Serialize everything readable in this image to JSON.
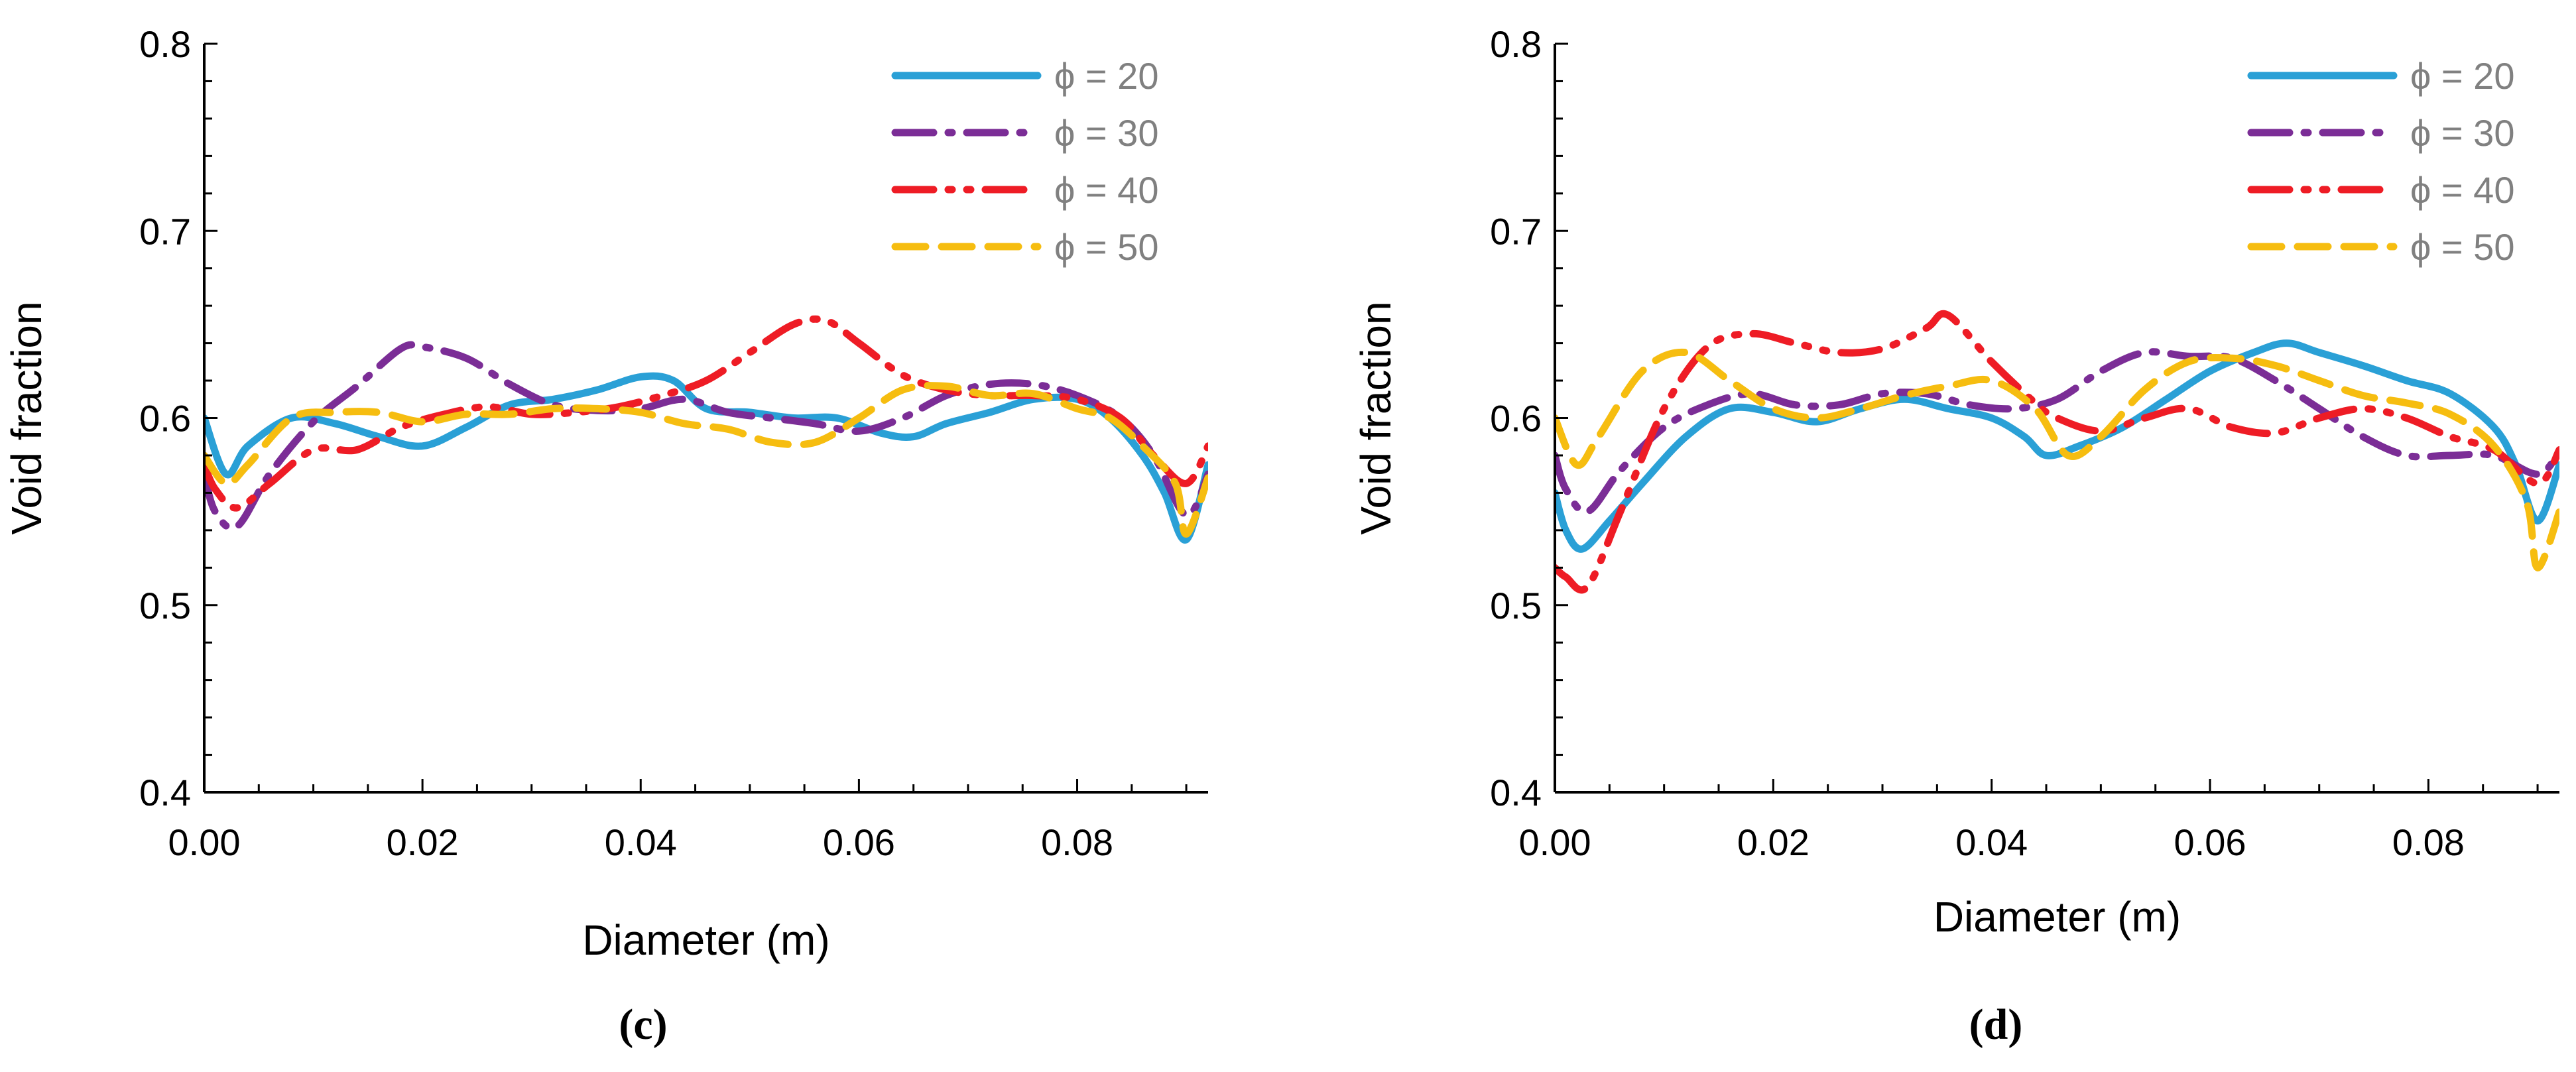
{
  "chart_data": [
    {
      "type": "line",
      "panel_label": "(c)",
      "xlabel": "Diameter (m)",
      "ylabel": "Void fraction",
      "xlim": [
        0,
        0.092
      ],
      "ylim": [
        0.4,
        0.8
      ],
      "xticks": [
        "0.00",
        "0.02",
        "0.04",
        "0.06",
        "0.08"
      ],
      "yticks": [
        "0.4",
        "0.5",
        "0.6",
        "0.7",
        "0.8"
      ],
      "grid": false,
      "legend": "top-right",
      "series": [
        {
          "name": "ϕ = 20",
          "color": "#2aa0d6",
          "dash": "solid",
          "x": [
            0,
            0.002,
            0.004,
            0.008,
            0.012,
            0.016,
            0.02,
            0.024,
            0.028,
            0.032,
            0.036,
            0.04,
            0.043,
            0.046,
            0.05,
            0.054,
            0.058,
            0.062,
            0.065,
            0.068,
            0.072,
            0.076,
            0.08,
            0.083,
            0.086,
            0.088,
            0.09,
            0.092
          ],
          "y": [
            0.6,
            0.57,
            0.585,
            0.6,
            0.597,
            0.59,
            0.585,
            0.595,
            0.607,
            0.61,
            0.615,
            0.622,
            0.62,
            0.605,
            0.603,
            0.6,
            0.6,
            0.592,
            0.59,
            0.597,
            0.603,
            0.61,
            0.61,
            0.6,
            0.58,
            0.56,
            0.535,
            0.575
          ]
        },
        {
          "name": "ϕ = 30",
          "color": "#7b2d96",
          "dash": "dashdot",
          "x": [
            0,
            0.001,
            0.003,
            0.006,
            0.01,
            0.014,
            0.018,
            0.02,
            0.024,
            0.028,
            0.032,
            0.036,
            0.04,
            0.044,
            0.048,
            0.052,
            0.056,
            0.06,
            0.064,
            0.068,
            0.072,
            0.076,
            0.08,
            0.084,
            0.087,
            0.09,
            0.092
          ],
          "y": [
            0.57,
            0.55,
            0.542,
            0.57,
            0.598,
            0.617,
            0.637,
            0.638,
            0.632,
            0.618,
            0.607,
            0.604,
            0.605,
            0.61,
            0.603,
            0.6,
            0.597,
            0.593,
            0.6,
            0.612,
            0.618,
            0.618,
            0.612,
            0.6,
            0.58,
            0.548,
            0.57
          ]
        },
        {
          "name": "ϕ = 40",
          "color": "#ee1c25",
          "dash": "dashdotdot",
          "x": [
            0,
            0.001,
            0.003,
            0.006,
            0.01,
            0.014,
            0.018,
            0.022,
            0.026,
            0.03,
            0.034,
            0.038,
            0.042,
            0.046,
            0.05,
            0.054,
            0.057,
            0.06,
            0.064,
            0.068,
            0.072,
            0.076,
            0.08,
            0.084,
            0.087,
            0.09,
            0.092
          ],
          "y": [
            0.575,
            0.562,
            0.552,
            0.565,
            0.583,
            0.583,
            0.595,
            0.602,
            0.606,
            0.602,
            0.603,
            0.606,
            0.612,
            0.62,
            0.635,
            0.65,
            0.652,
            0.64,
            0.623,
            0.615,
            0.612,
            0.612,
            0.61,
            0.6,
            0.58,
            0.565,
            0.585
          ]
        },
        {
          "name": "ϕ = 50",
          "color": "#f6bd10",
          "dash": "dashed",
          "x": [
            0,
            0.002,
            0.004,
            0.008,
            0.012,
            0.016,
            0.02,
            0.024,
            0.028,
            0.032,
            0.036,
            0.04,
            0.044,
            0.048,
            0.052,
            0.056,
            0.06,
            0.064,
            0.068,
            0.072,
            0.076,
            0.08,
            0.083,
            0.086,
            0.089,
            0.09,
            0.092
          ],
          "y": [
            0.58,
            0.565,
            0.575,
            0.6,
            0.603,
            0.603,
            0.598,
            0.602,
            0.602,
            0.605,
            0.605,
            0.603,
            0.597,
            0.594,
            0.587,
            0.587,
            0.6,
            0.615,
            0.617,
            0.612,
            0.613,
            0.605,
            0.6,
            0.585,
            0.565,
            0.538,
            0.568
          ]
        }
      ]
    },
    {
      "type": "line",
      "panel_label": "(d)",
      "xlabel": "Diameter (m)",
      "ylabel": "Void fraction",
      "xlim": [
        0,
        0.092
      ],
      "ylim": [
        0.4,
        0.8
      ],
      "xticks": [
        "0.00",
        "0.02",
        "0.04",
        "0.06",
        "0.08"
      ],
      "yticks": [
        "0.4",
        "0.5",
        "0.6",
        "0.7",
        "0.8"
      ],
      "grid": false,
      "legend": "top-right",
      "series": [
        {
          "name": "ϕ = 20",
          "color": "#2aa0d6",
          "dash": "solid",
          "x": [
            0,
            0.001,
            0.0025,
            0.005,
            0.008,
            0.012,
            0.016,
            0.02,
            0.024,
            0.028,
            0.032,
            0.036,
            0.04,
            0.043,
            0.045,
            0.048,
            0.052,
            0.056,
            0.06,
            0.064,
            0.067,
            0.07,
            0.074,
            0.078,
            0.082,
            0.086,
            0.088,
            0.09,
            0.092
          ],
          "y": [
            0.56,
            0.54,
            0.53,
            0.545,
            0.565,
            0.59,
            0.605,
            0.603,
            0.598,
            0.605,
            0.61,
            0.605,
            0.6,
            0.59,
            0.58,
            0.585,
            0.595,
            0.61,
            0.625,
            0.635,
            0.64,
            0.635,
            0.628,
            0.62,
            0.613,
            0.595,
            0.575,
            0.545,
            0.575
          ]
        },
        {
          "name": "ϕ = 30",
          "color": "#7b2d96",
          "dash": "dashdot",
          "x": [
            0,
            0.001,
            0.003,
            0.006,
            0.01,
            0.014,
            0.018,
            0.022,
            0.026,
            0.03,
            0.034,
            0.038,
            0.042,
            0.046,
            0.05,
            0.054,
            0.058,
            0.062,
            0.066,
            0.07,
            0.074,
            0.078,
            0.082,
            0.086,
            0.09,
            0.092
          ],
          "y": [
            0.58,
            0.562,
            0.55,
            0.572,
            0.595,
            0.607,
            0.613,
            0.607,
            0.607,
            0.613,
            0.613,
            0.607,
            0.605,
            0.61,
            0.625,
            0.635,
            0.633,
            0.632,
            0.62,
            0.605,
            0.59,
            0.58,
            0.58,
            0.58,
            0.57,
            0.582
          ]
        },
        {
          "name": "ϕ = 40",
          "color": "#ee1c25",
          "dash": "dashdotdot",
          "x": [
            0,
            0.001,
            0.003,
            0.006,
            0.01,
            0.014,
            0.018,
            0.022,
            0.026,
            0.03,
            0.034,
            0.036,
            0.04,
            0.044,
            0.046,
            0.05,
            0.054,
            0.058,
            0.062,
            0.066,
            0.07,
            0.074,
            0.078,
            0.082,
            0.086,
            0.09,
            0.092
          ],
          "y": [
            0.52,
            0.515,
            0.51,
            0.55,
            0.605,
            0.638,
            0.645,
            0.64,
            0.635,
            0.637,
            0.648,
            0.655,
            0.63,
            0.608,
            0.6,
            0.593,
            0.6,
            0.605,
            0.595,
            0.592,
            0.6,
            0.605,
            0.6,
            0.59,
            0.583,
            0.565,
            0.583
          ]
        },
        {
          "name": "ϕ = 50",
          "color": "#f6bd10",
          "dash": "dashed",
          "x": [
            0,
            0.002,
            0.004,
            0.008,
            0.012,
            0.016,
            0.02,
            0.024,
            0.028,
            0.032,
            0.036,
            0.04,
            0.044,
            0.047,
            0.05,
            0.054,
            0.058,
            0.062,
            0.066,
            0.07,
            0.074,
            0.078,
            0.082,
            0.086,
            0.089,
            0.09,
            0.092
          ],
          "y": [
            0.6,
            0.575,
            0.59,
            0.625,
            0.635,
            0.62,
            0.605,
            0.6,
            0.605,
            0.612,
            0.617,
            0.62,
            0.605,
            0.58,
            0.59,
            0.615,
            0.63,
            0.632,
            0.628,
            0.62,
            0.612,
            0.608,
            0.602,
            0.585,
            0.555,
            0.52,
            0.55
          ]
        }
      ]
    }
  ]
}
